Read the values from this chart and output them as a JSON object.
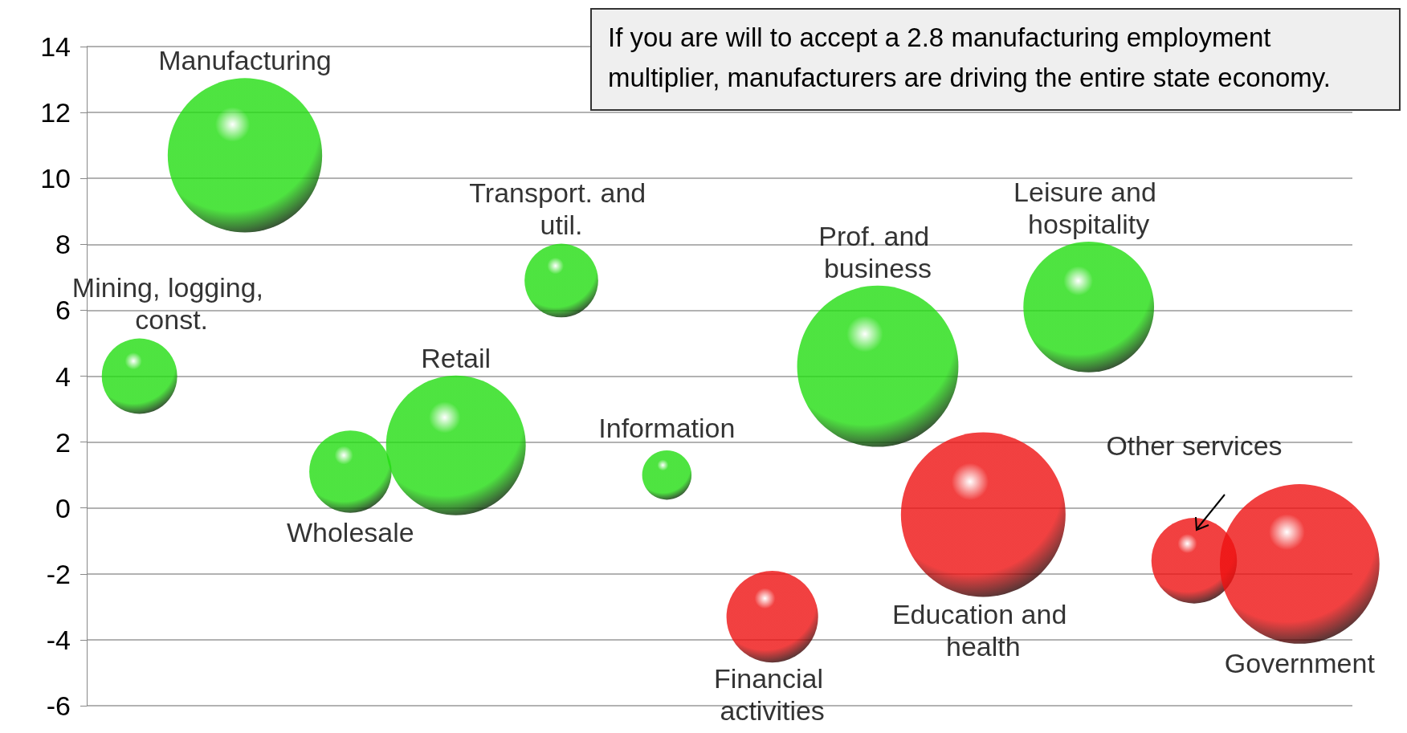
{
  "chart_data": {
    "type": "bubble",
    "categories": [
      null,
      null,
      null,
      null,
      null,
      null,
      null,
      null,
      null,
      null,
      null,
      null
    ],
    "ylim": [
      -6,
      14
    ],
    "yticks": [
      -6,
      -4,
      -2,
      0,
      2,
      4,
      6,
      8,
      10,
      12,
      14
    ],
    "grid": "y",
    "annotations": [
      "If you are will to accept a 2.8 manufacturing employment multiplier, manufacturers are driving the entire state economy."
    ],
    "series": [
      {
        "name": "Mining, logging, const.",
        "color": "#22dd11",
        "values": [
          4.0,
          null,
          null,
          null,
          null,
          null,
          null,
          null,
          null,
          null,
          null,
          null
        ],
        "sizes": [
          0.21,
          null,
          null,
          null,
          null,
          null,
          null,
          null,
          null,
          null,
          null,
          null
        ]
      },
      {
        "name": "Manufacturing",
        "color": "#22dd11",
        "values": [
          null,
          10.7,
          null,
          null,
          null,
          null,
          null,
          null,
          null,
          null,
          null,
          null
        ],
        "sizes": [
          null,
          0.88,
          null,
          null,
          null,
          null,
          null,
          null,
          null,
          null,
          null,
          null
        ]
      },
      {
        "name": "Wholesale",
        "color": "#22dd11",
        "values": [
          null,
          null,
          1.1,
          null,
          null,
          null,
          null,
          null,
          null,
          null,
          null,
          null
        ],
        "sizes": [
          null,
          null,
          0.25,
          null,
          null,
          null,
          null,
          null,
          null,
          null,
          null,
          null
        ]
      },
      {
        "name": "Retail",
        "color": "#22dd11",
        "values": [
          null,
          null,
          null,
          1.9,
          null,
          null,
          null,
          null,
          null,
          null,
          null,
          null
        ],
        "sizes": [
          null,
          null,
          null,
          0.72,
          null,
          null,
          null,
          null,
          null,
          null,
          null,
          null
        ]
      },
      {
        "name": "Transport. and util.",
        "color": "#22dd11",
        "values": [
          null,
          null,
          null,
          null,
          6.9,
          null,
          null,
          null,
          null,
          null,
          null,
          null
        ],
        "sizes": [
          null,
          null,
          null,
          null,
          0.2,
          null,
          null,
          null,
          null,
          null,
          null,
          null
        ]
      },
      {
        "name": "Information",
        "color": "#22dd11",
        "values": [
          null,
          null,
          null,
          null,
          null,
          1.0,
          null,
          null,
          null,
          null,
          null,
          null
        ],
        "sizes": [
          null,
          null,
          null,
          null,
          null,
          0.09,
          null,
          null,
          null,
          null,
          null,
          null
        ]
      },
      {
        "name": "Financial activities",
        "color": "#ee1111",
        "values": [
          null,
          null,
          null,
          null,
          null,
          null,
          -3.3,
          null,
          null,
          null,
          null,
          null
        ],
        "sizes": [
          null,
          null,
          null,
          null,
          null,
          null,
          0.31,
          null,
          null,
          null,
          null,
          null
        ]
      },
      {
        "name": "Prof. and business",
        "color": "#22dd11",
        "values": [
          null,
          null,
          null,
          null,
          null,
          null,
          null,
          4.3,
          null,
          null,
          null,
          null
        ],
        "sizes": [
          null,
          null,
          null,
          null,
          null,
          null,
          null,
          0.96,
          null,
          null,
          null,
          null
        ]
      },
      {
        "name": "Education and health",
        "color": "#ee1111",
        "values": [
          null,
          null,
          null,
          null,
          null,
          null,
          null,
          null,
          -0.2,
          null,
          null,
          null
        ],
        "sizes": [
          null,
          null,
          null,
          null,
          null,
          null,
          null,
          null,
          1,
          null,
          null,
          null
        ]
      },
      {
        "name": "Leisure and hospitality",
        "color": "#22dd11",
        "values": [
          null,
          null,
          null,
          null,
          null,
          null,
          null,
          null,
          null,
          6.1,
          null,
          null
        ],
        "sizes": [
          null,
          null,
          null,
          null,
          null,
          null,
          null,
          null,
          null,
          0.63,
          null,
          null
        ]
      },
      {
        "name": "Other services",
        "color": "#ee1111",
        "values": [
          null,
          null,
          null,
          null,
          null,
          null,
          null,
          null,
          null,
          null,
          -1.6,
          null
        ],
        "sizes": [
          null,
          null,
          null,
          null,
          null,
          null,
          null,
          null,
          null,
          null,
          0.27,
          null
        ]
      },
      {
        "name": "Government",
        "color": "#ee1111",
        "values": [
          null,
          null,
          null,
          null,
          null,
          null,
          null,
          null,
          null,
          null,
          null,
          -1.7
        ],
        "sizes": [
          null,
          null,
          null,
          null,
          null,
          null,
          null,
          null,
          null,
          null,
          null,
          0.94
        ]
      }
    ]
  }
}
